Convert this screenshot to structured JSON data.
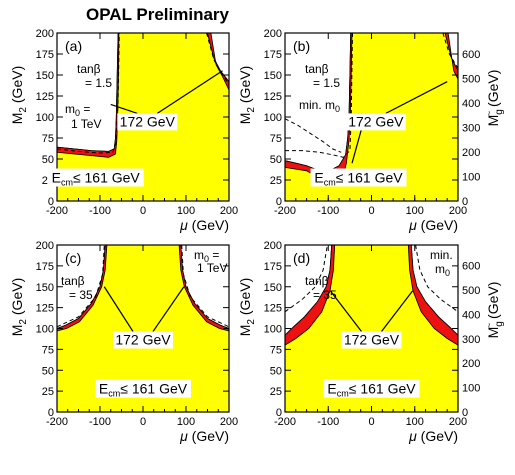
{
  "figure_title": "OPAL Preliminary",
  "colors": {
    "allowed_region": "#ffff00",
    "excluded_172": "#ee1111",
    "excluded_161": "#ffffff",
    "line": "#000000"
  },
  "annotations": {
    "label_172": "172 GeV",
    "ecm_prefix": "E",
    "ecm_sub": "cm",
    "ecm_suffix": "≤ 161 GeV"
  },
  "axes": {
    "xlabel_mu": "μ",
    "xlabel_unit": " (GeV)",
    "ylabel_left_main": "M",
    "ylabel_left_sub": "2",
    "ylabel_left_unit": " (GeV)",
    "ylabel_right_main": "M",
    "ylabel_right_sub": "g",
    "ylabel_right_tilde": "~",
    "ylabel_right_unit": " (GeV)"
  },
  "chart_data": [
    {
      "type": "area",
      "panel": "(a)",
      "tanbeta_label": "tanβ",
      "tanbeta_value": "= 1.5",
      "m0_label_line1": "m",
      "m0_label_sub": "0",
      "m0_label_line1_suffix": " =",
      "m0_label_line2": "1 TeV",
      "xlim": [
        -200,
        200
      ],
      "ylim": [
        0,
        200
      ],
      "x_ticks": [
        "-200",
        "-100",
        "0",
        "100",
        "200"
      ],
      "y_ticks": [
        "0",
        "25",
        "50",
        "75",
        "100",
        "125",
        "150",
        "175",
        "200"
      ],
      "right_axis": false,
      "boundary_161": [
        [
          -200,
          60
        ],
        [
          -150,
          57
        ],
        [
          -100,
          55
        ],
        [
          -70,
          55
        ],
        [
          -64,
          65
        ],
        [
          -60,
          120
        ],
        [
          -56,
          200
        ]
      ],
      "boundary_172": [
        [
          -200,
          65
        ],
        [
          -150,
          62
        ],
        [
          -100,
          60
        ],
        [
          -75,
          60
        ],
        [
          -66,
          70
        ],
        [
          -62,
          120
        ],
        [
          -59,
          200
        ]
      ],
      "boundary_161_right": [
        [
          160,
          200
        ],
        [
          175,
          160
        ],
        [
          190,
          145
        ],
        [
          200,
          140
        ]
      ],
      "boundary_172_right": [
        [
          150,
          200
        ],
        [
          165,
          165
        ],
        [
          185,
          148
        ],
        [
          200,
          143
        ]
      ]
    },
    {
      "type": "area",
      "panel": "(b)",
      "tanbeta_label": "tanβ",
      "tanbeta_value": "= 1.5",
      "m0_label_line1": "min. m",
      "m0_label_sub": "0",
      "xlim": [
        -200,
        200
      ],
      "ylim": [
        0,
        200
      ],
      "x_ticks": [
        "-200",
        "-100",
        "0",
        "100",
        "200"
      ],
      "y_ticks": [
        "0",
        "25",
        "50",
        "75",
        "100",
        "125",
        "150",
        "175",
        "200"
      ],
      "right_ticks": [
        "0",
        "100",
        "200",
        "300",
        "400",
        "500",
        "600"
      ],
      "right_axis": true
    },
    {
      "type": "area",
      "panel": "(c)",
      "tanbeta_label": "tanβ",
      "tanbeta_value": "= 35",
      "m0_label_line1": "m",
      "m0_label_sub": "0",
      "m0_label_line1_suffix": " =",
      "m0_label_line2": "1 TeV",
      "xlim": [
        -200,
        200
      ],
      "ylim": [
        0,
        200
      ],
      "x_ticks": [
        "-200",
        "-100",
        "0",
        "100",
        "200"
      ],
      "y_ticks": [
        "0",
        "25",
        "50",
        "75",
        "100",
        "125",
        "150",
        "175",
        "200"
      ],
      "right_axis": false
    },
    {
      "type": "area",
      "panel": "(d)",
      "tanbeta_label": "tanβ",
      "tanbeta_value": "= 35",
      "m0_label_line1": "min.",
      "m0_label_line2": "m",
      "m0_label_sub": "0",
      "xlim": [
        -200,
        200
      ],
      "ylim": [
        0,
        200
      ],
      "x_ticks": [
        "-200",
        "-100",
        "0",
        "100",
        "200"
      ],
      "y_ticks": [
        "0",
        "25",
        "50",
        "75",
        "100",
        "125",
        "150",
        "175",
        "200"
      ],
      "right_ticks": [
        "0",
        "100",
        "200",
        "300",
        "400",
        "500",
        "600"
      ],
      "right_axis": true
    }
  ]
}
